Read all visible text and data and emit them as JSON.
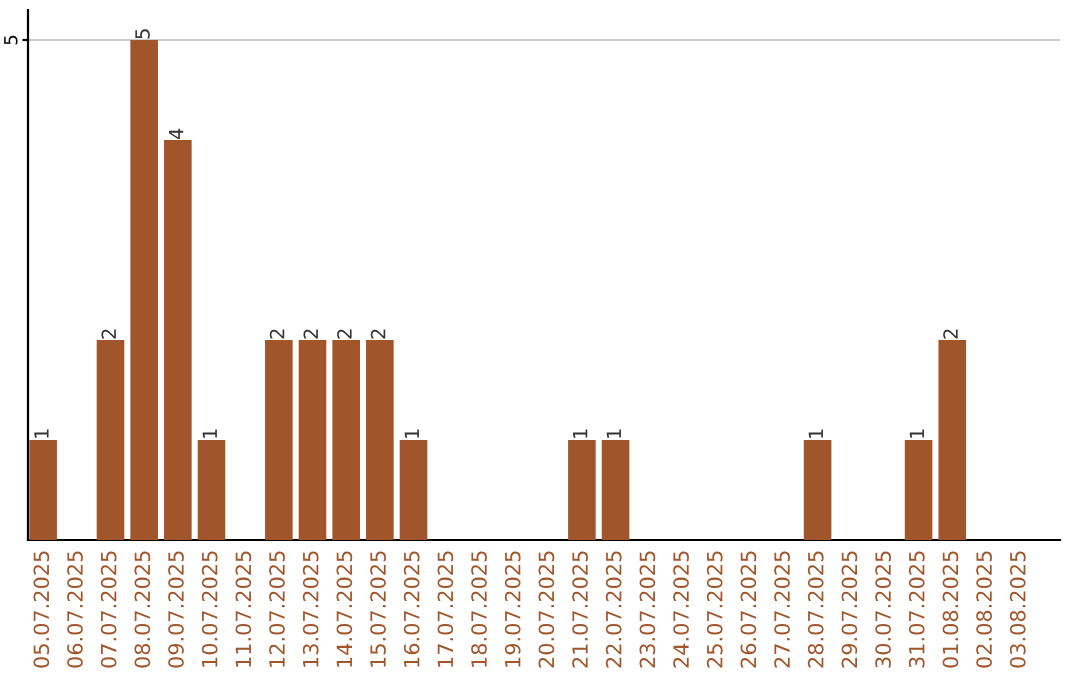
{
  "chart_data": {
    "type": "bar",
    "categories": [
      "05.07.2025",
      "06.07.2025",
      "07.07.2025",
      "08.07.2025",
      "09.07.2025",
      "10.07.2025",
      "11.07.2025",
      "12.07.2025",
      "13.07.2025",
      "14.07.2025",
      "15.07.2025",
      "16.07.2025",
      "17.07.2025",
      "18.07.2025",
      "19.07.2025",
      "20.07.2025",
      "21.07.2025",
      "22.07.2025",
      "23.07.2025",
      "24.07.2025",
      "25.07.2025",
      "26.07.2025",
      "27.07.2025",
      "28.07.2025",
      "29.07.2025",
      "30.07.2025",
      "31.07.2025",
      "01.08.2025",
      "02.08.2025",
      "03.08.2025"
    ],
    "values": [
      1,
      0,
      2,
      5,
      4,
      1,
      0,
      2,
      2,
      2,
      2,
      1,
      0,
      0,
      0,
      0,
      1,
      1,
      0,
      0,
      0,
      0,
      0,
      1,
      0,
      0,
      1,
      2,
      0,
      0
    ],
    "value_labels": [
      "1",
      null,
      "2",
      "5",
      "4",
      "1",
      null,
      "2",
      "2",
      "2",
      "2",
      "1",
      null,
      null,
      null,
      null,
      "1",
      "1",
      null,
      null,
      null,
      null,
      null,
      "1",
      null,
      null,
      "1",
      "2",
      null,
      null
    ],
    "color": "#a0562a",
    "ylim": [
      0,
      5.3
    ],
    "yticks": [
      5
    ],
    "grid": "y"
  }
}
